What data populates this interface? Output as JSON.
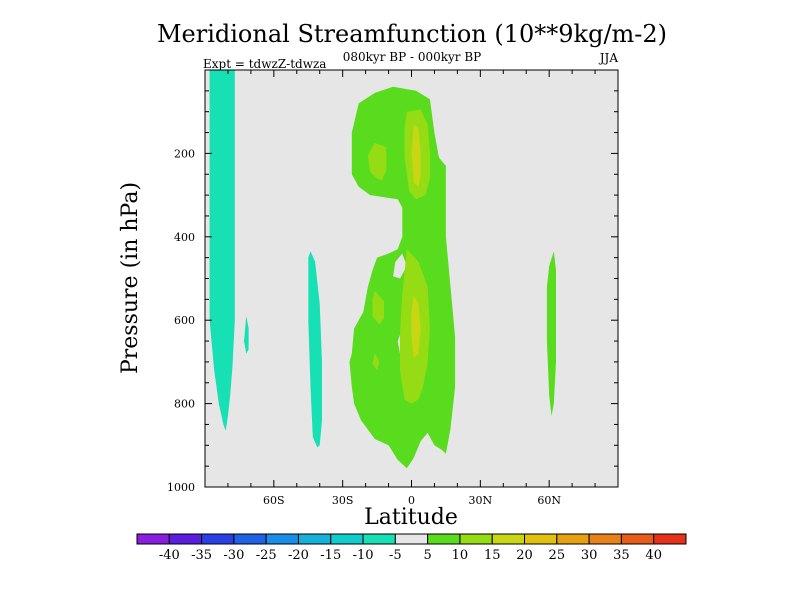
{
  "chart_data": {
    "type": "heatmap",
    "title": "Meridional Streamfunction (10**9kg/m-2)",
    "subtitle": "080kyr BP - 000kyr BP",
    "experiment": "Expt = tdwzZ-tdwza",
    "season": "JJA",
    "xlabel": "Latitude",
    "ylabel": "Pressure (in hPa)",
    "xlim": [
      -90,
      90
    ],
    "ylim": [
      1000,
      0
    ],
    "x_ticks": [
      {
        "value": -60,
        "label": "60S"
      },
      {
        "value": -30,
        "label": "30S"
      },
      {
        "value": 0,
        "label": "0"
      },
      {
        "value": 30,
        "label": "30N"
      },
      {
        "value": 60,
        "label": "60N"
      }
    ],
    "y_ticks": [
      {
        "value": 200,
        "label": "200"
      },
      {
        "value": 400,
        "label": "400"
      },
      {
        "value": 600,
        "label": "600"
      },
      {
        "value": 800,
        "label": "800"
      },
      {
        "value": 1000,
        "label": "1000"
      }
    ],
    "colorbar": {
      "colors": [
        "#8a1ee0",
        "#5a1ee0",
        "#2a3ee6",
        "#1f62e6",
        "#1a8ee6",
        "#16b0dd",
        "#10cccc",
        "#16e0b4",
        "#e6e6e6",
        "#5adc1e",
        "#96dc14",
        "#c8d614",
        "#e2c010",
        "#e6a010",
        "#e68218",
        "#e65c18",
        "#e63218"
      ],
      "labels": [
        "-40",
        "-35",
        "-30",
        "-25",
        "-20",
        "-15",
        "-10",
        "-5",
        "5",
        "10",
        "15",
        "20",
        "25",
        "30",
        "35",
        "40"
      ]
    },
    "regions": [
      {
        "level": "-10 to -5",
        "color": "#16e0b4",
        "points": [
          [
            -88,
            0
          ],
          [
            -77,
            0
          ],
          [
            -77,
            600
          ],
          [
            -78,
            710
          ],
          [
            -79,
            780
          ],
          [
            -80,
            830
          ],
          [
            -81,
            865
          ],
          [
            -82,
            850
          ],
          [
            -84,
            800
          ],
          [
            -86,
            720
          ],
          [
            -88,
            600
          ]
        ]
      },
      {
        "level": "-10 to -5",
        "color": "#16e0b4",
        "points": [
          [
            -72,
            590
          ],
          [
            -71,
            620
          ],
          [
            -71,
            670
          ],
          [
            -72,
            680
          ],
          [
            -73,
            650
          ]
        ]
      },
      {
        "level": "-10 to -5",
        "color": "#16e0b4",
        "points": [
          [
            -44,
            435
          ],
          [
            -42,
            460
          ],
          [
            -40,
            560
          ],
          [
            -39,
            700
          ],
          [
            -39,
            840
          ],
          [
            -40,
            900
          ],
          [
            -41,
            905
          ],
          [
            -43,
            880
          ],
          [
            -44,
            760
          ],
          [
            -45,
            600
          ],
          [
            -45,
            450
          ]
        ]
      },
      {
        "level": "5 to 10",
        "color": "#5adc1e",
        "points": [
          [
            -23,
            80
          ],
          [
            -16,
            55
          ],
          [
            -8,
            40
          ],
          [
            2,
            50
          ],
          [
            8,
            70
          ],
          [
            10,
            150
          ],
          [
            12,
            210
          ],
          [
            15,
            230
          ],
          [
            15,
            400
          ],
          [
            17,
            520
          ],
          [
            19,
            640
          ],
          [
            19,
            760
          ],
          [
            17,
            860
          ],
          [
            15,
            920
          ],
          [
            13,
            910
          ],
          [
            10,
            900
          ],
          [
            7,
            870
          ],
          [
            4,
            890
          ],
          [
            1,
            930
          ],
          [
            -2,
            955
          ],
          [
            -6,
            935
          ],
          [
            -10,
            900
          ],
          [
            -16,
            885
          ],
          [
            -22,
            840
          ],
          [
            -25,
            800
          ],
          [
            -26,
            760
          ],
          [
            -27,
            700
          ],
          [
            -26,
            680
          ],
          [
            -25,
            620
          ],
          [
            -23,
            600
          ],
          [
            -21,
            580
          ],
          [
            -19,
            520
          ],
          [
            -17,
            480
          ],
          [
            -15,
            450
          ],
          [
            -10,
            440
          ],
          [
            -6,
            430
          ],
          [
            -4,
            400
          ],
          [
            -4,
            330
          ],
          [
            -6,
            310
          ],
          [
            -12,
            305
          ],
          [
            -18,
            300
          ],
          [
            -23,
            280
          ],
          [
            -26,
            250
          ],
          [
            -26,
            150
          ]
        ]
      },
      {
        "level": "-5 to 5",
        "color": "#e6e6e6",
        "points": [
          [
            -20,
            335
          ],
          [
            -10,
            330
          ],
          [
            -6,
            340
          ],
          [
            -5,
            390
          ],
          [
            -10,
            410
          ],
          [
            -16,
            415
          ],
          [
            -22,
            410
          ],
          [
            -22,
            360
          ]
        ]
      },
      {
        "level": "-5 to 5",
        "color": "#e6e6e6",
        "points": [
          [
            -4,
            440
          ],
          [
            -2,
            470
          ],
          [
            -5,
            500
          ],
          [
            -8,
            495
          ],
          [
            -7,
            460
          ]
        ]
      },
      {
        "level": "-5 to 5",
        "color": "#e6e6e6",
        "points": [
          [
            -4,
            620
          ],
          [
            -3,
            660
          ],
          [
            -5,
            680
          ],
          [
            -6,
            650
          ]
        ]
      },
      {
        "level": "10 to 15",
        "color": "#96dc14",
        "points": [
          [
            -16,
            175
          ],
          [
            -11,
            185
          ],
          [
            -11,
            240
          ],
          [
            -13,
            265
          ],
          [
            -15,
            260
          ],
          [
            -18,
            245
          ],
          [
            -19,
            205
          ]
        ]
      },
      {
        "level": "10 to 15",
        "color": "#96dc14",
        "points": [
          [
            -2,
            100
          ],
          [
            4,
            95
          ],
          [
            7,
            130
          ],
          [
            8,
            200
          ],
          [
            8,
            260
          ],
          [
            6,
            300
          ],
          [
            2,
            310
          ],
          [
            -1,
            290
          ],
          [
            -3,
            210
          ],
          [
            -3,
            140
          ]
        ]
      },
      {
        "level": "10 to 15",
        "color": "#96dc14",
        "points": [
          [
            -2,
            430
          ],
          [
            3,
            460
          ],
          [
            7,
            520
          ],
          [
            8,
            620
          ],
          [
            7,
            700
          ],
          [
            5,
            760
          ],
          [
            3,
            790
          ],
          [
            0,
            800
          ],
          [
            -3,
            790
          ],
          [
            -5,
            720
          ],
          [
            -5,
            630
          ],
          [
            -4,
            540
          ]
        ]
      },
      {
        "level": "10 to 15",
        "color": "#96dc14",
        "points": [
          [
            -16,
            530
          ],
          [
            -12,
            555
          ],
          [
            -12,
            595
          ],
          [
            -14,
            610
          ],
          [
            -17,
            590
          ],
          [
            -17,
            550
          ]
        ]
      },
      {
        "level": "10 to 15",
        "color": "#96dc14",
        "points": [
          [
            -16,
            680
          ],
          [
            -14,
            700
          ],
          [
            -15,
            720
          ],
          [
            -17,
            705
          ]
        ]
      },
      {
        "level": "15 to 20",
        "color": "#c8d614",
        "points": [
          [
            1,
            130
          ],
          [
            3,
            140
          ],
          [
            4,
            200
          ],
          [
            4,
            250
          ],
          [
            3,
            280
          ],
          [
            1,
            270
          ],
          [
            0,
            200
          ]
        ]
      },
      {
        "level": "15 to 20",
        "color": "#c8d614",
        "points": [
          [
            1,
            540
          ],
          [
            3,
            560
          ],
          [
            4,
            620
          ],
          [
            3,
            680
          ],
          [
            1,
            690
          ],
          [
            0,
            640
          ],
          [
            0,
            580
          ]
        ]
      },
      {
        "level": "5 to 10",
        "color": "#5adc1e",
        "points": [
          [
            62,
            435
          ],
          [
            63,
            480
          ],
          [
            63,
            700
          ],
          [
            62,
            800
          ],
          [
            61,
            830
          ],
          [
            60,
            780
          ],
          [
            59,
            650
          ],
          [
            59,
            520
          ],
          [
            60,
            470
          ]
        ]
      }
    ]
  }
}
